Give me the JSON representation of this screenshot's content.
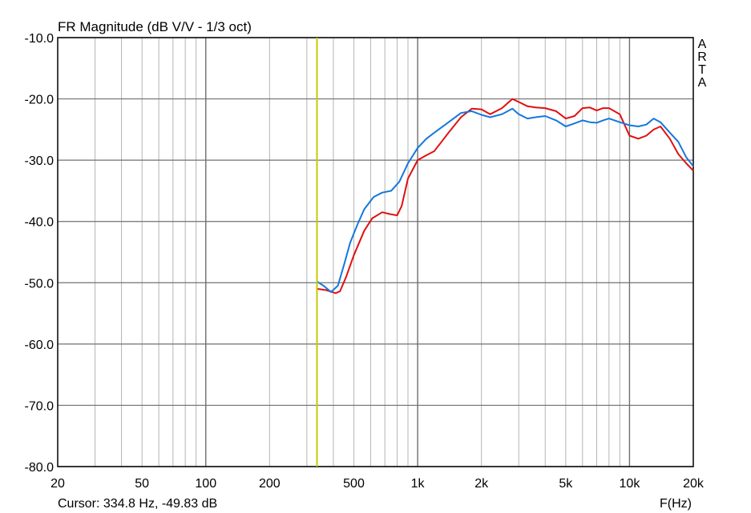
{
  "chart_data": {
    "type": "line",
    "title": "FR Magnitude (dB V/V - 1/3 oct)",
    "xlabel": "F(Hz)",
    "ylabel": "",
    "x_scale": "log",
    "xlim": [
      20,
      20000
    ],
    "ylim": [
      -80,
      -10
    ],
    "grid": true,
    "x_ticks": [
      {
        "value": 20,
        "label": "20"
      },
      {
        "value": 50,
        "label": "50"
      },
      {
        "value": 100,
        "label": "100"
      },
      {
        "value": 200,
        "label": "200"
      },
      {
        "value": 500,
        "label": "500"
      },
      {
        "value": 1000,
        "label": "1k"
      },
      {
        "value": 2000,
        "label": "2k"
      },
      {
        "value": 5000,
        "label": "5k"
      },
      {
        "value": 10000,
        "label": "10k"
      },
      {
        "value": 20000,
        "label": "20k"
      }
    ],
    "y_ticks": [
      {
        "value": -10,
        "label": "-10.0"
      },
      {
        "value": -20,
        "label": "-20.0"
      },
      {
        "value": -30,
        "label": "-30.0"
      },
      {
        "value": -40,
        "label": "-40.0"
      },
      {
        "value": -50,
        "label": "-50.0"
      },
      {
        "value": -60,
        "label": "-60.0"
      },
      {
        "value": -70,
        "label": "-70.0"
      },
      {
        "value": -80,
        "label": "-80.0"
      }
    ],
    "cursor": {
      "x": 334.8,
      "color": "#c8c800"
    },
    "series": [
      {
        "color": "#e01010",
        "x": [
          335,
          370,
          410,
          430,
          460,
          500,
          560,
          610,
          680,
          740,
          800,
          840,
          900,
          1000,
          1100,
          1200,
          1400,
          1600,
          1800,
          2000,
          2200,
          2500,
          2800,
          3000,
          3300,
          3600,
          4000,
          4500,
          5000,
          5500,
          6000,
          6500,
          7000,
          7500,
          8000,
          9000,
          10000,
          11000,
          12000,
          13000,
          14000,
          15500,
          17000,
          18500,
          20000
        ],
        "y": [
          -51.0,
          -51.2,
          -51.7,
          -51.4,
          -49.0,
          -45.5,
          -41.5,
          -39.5,
          -38.5,
          -38.8,
          -39.0,
          -37.5,
          -33.0,
          -30.0,
          -29.2,
          -28.5,
          -25.5,
          -23.0,
          -21.6,
          -21.7,
          -22.5,
          -21.5,
          -20.0,
          -20.5,
          -21.2,
          -21.4,
          -21.5,
          -22.0,
          -23.2,
          -22.8,
          -21.5,
          -21.4,
          -21.9,
          -21.5,
          -21.5,
          -22.5,
          -26.0,
          -26.5,
          -26.0,
          -25.0,
          -24.5,
          -26.5,
          -29.0,
          -30.5,
          -31.7
        ]
      },
      {
        "color": "#1478dc",
        "x": [
          335,
          360,
          390,
          420,
          450,
          480,
          520,
          560,
          620,
          680,
          750,
          820,
          900,
          1000,
          1100,
          1200,
          1400,
          1600,
          1800,
          2000,
          2200,
          2500,
          2800,
          3000,
          3300,
          3600,
          4000,
          4500,
          5000,
          5500,
          6000,
          6500,
          7000,
          7500,
          8000,
          9000,
          10000,
          11000,
          12000,
          13000,
          14000,
          15500,
          17000,
          18500,
          20000
        ],
        "y": [
          -49.8,
          -50.5,
          -51.5,
          -50.5,
          -47.0,
          -43.5,
          -40.5,
          -38.0,
          -36.0,
          -35.3,
          -35.0,
          -33.5,
          -30.5,
          -28.0,
          -26.5,
          -25.5,
          -23.8,
          -22.3,
          -22.0,
          -22.6,
          -23.0,
          -22.5,
          -21.6,
          -22.5,
          -23.2,
          -23.0,
          -22.8,
          -23.5,
          -24.5,
          -24.0,
          -23.5,
          -23.8,
          -23.9,
          -23.5,
          -23.2,
          -23.8,
          -24.3,
          -24.5,
          -24.2,
          -23.2,
          -23.8,
          -25.5,
          -27.0,
          -29.5,
          -31.0
        ]
      }
    ],
    "annotations": {
      "side_label": [
        "A",
        "R",
        "T",
        "A"
      ],
      "cursor_readout": "Cursor: 334.8 Hz, -49.83 dB"
    }
  }
}
